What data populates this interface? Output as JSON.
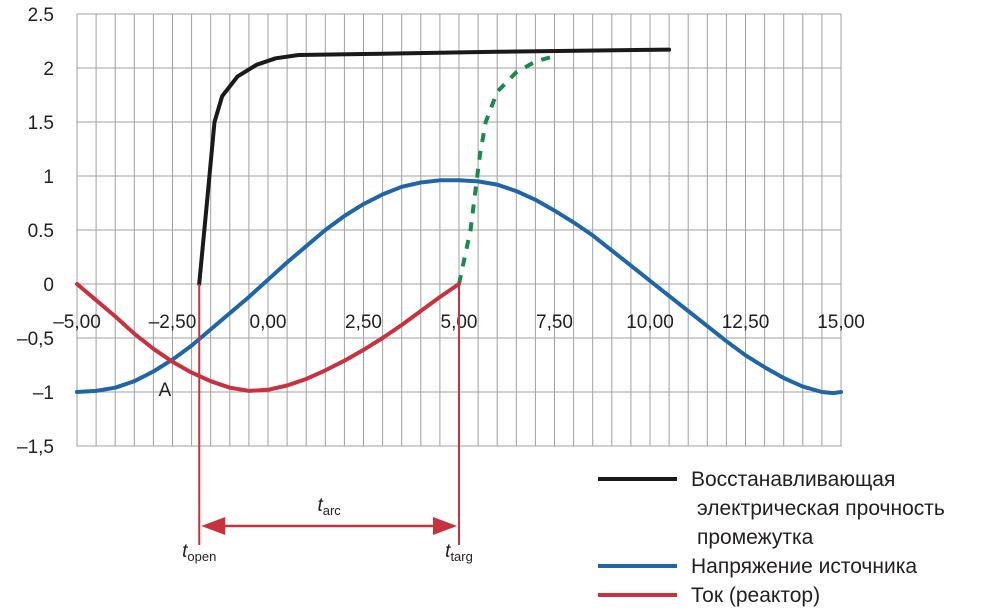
{
  "chart_data": {
    "type": "line",
    "xlim": [
      -5.0,
      15.0
    ],
    "ylim": [
      -1.5,
      2.5
    ],
    "x_grid_step": 0.5,
    "grid": true,
    "x_ticks": [
      {
        "v": -5.0,
        "label": "–5,00"
      },
      {
        "v": -2.5,
        "label": "–2,50"
      },
      {
        "v": 0.0,
        "label": "0,00"
      },
      {
        "v": 2.5,
        "label": "2,50"
      },
      {
        "v": 5.0,
        "label": "5,00"
      },
      {
        "v": 7.5,
        "label": "7,50"
      },
      {
        "v": 10.0,
        "label": "10,00"
      },
      {
        "v": 12.5,
        "label": "12,50"
      },
      {
        "v": 15.0,
        "label": "15,00"
      }
    ],
    "y_ticks": [
      {
        "v": 2.5,
        "label": "2.5"
      },
      {
        "v": 2.0,
        "label": "2"
      },
      {
        "v": 1.5,
        "label": "1.5"
      },
      {
        "v": 1.0,
        "label": "1"
      },
      {
        "v": 0.5,
        "label": "0.5"
      },
      {
        "v": 0.0,
        "label": "0"
      },
      {
        "v": -0.5,
        "label": "–0,5"
      },
      {
        "v": -1.0,
        "label": "–1"
      },
      {
        "v": -1.5,
        "label": "–1,5"
      }
    ],
    "series": [
      {
        "key": "recovery",
        "name": "Восстанавливающая электрическая прочность промежутка",
        "color": "#1a1a1a",
        "dash": false,
        "points": [
          [
            -1.8,
            0.0
          ],
          [
            -1.6,
            0.75
          ],
          [
            -1.4,
            1.5
          ],
          [
            -1.2,
            1.74
          ],
          [
            -0.8,
            1.92
          ],
          [
            -0.3,
            2.03
          ],
          [
            0.2,
            2.09
          ],
          [
            0.8,
            2.12
          ],
          [
            2.5,
            2.13
          ],
          [
            6.0,
            2.15
          ],
          [
            10.5,
            2.17
          ]
        ]
      },
      {
        "key": "recovery_after",
        "name": "",
        "color": "#1a8a4a",
        "dash": true,
        "points": [
          [
            5.0,
            0.0
          ],
          [
            5.3,
            0.5
          ],
          [
            5.55,
            1.2
          ],
          [
            5.7,
            1.5
          ],
          [
            6.0,
            1.78
          ],
          [
            6.5,
            1.96
          ],
          [
            7.0,
            2.06
          ],
          [
            7.6,
            2.12
          ]
        ]
      },
      {
        "key": "source_voltage",
        "name": "Напряжение источника",
        "color": "#1f66a8",
        "dash": false,
        "points": [
          [
            -5.0,
            -1.0
          ],
          [
            -4.5,
            -0.99
          ],
          [
            -4.0,
            -0.96
          ],
          [
            -3.5,
            -0.9
          ],
          [
            -3.0,
            -0.81
          ],
          [
            -2.5,
            -0.7
          ],
          [
            -2.0,
            -0.57
          ],
          [
            -1.5,
            -0.42
          ],
          [
            -1.0,
            -0.27
          ],
          [
            -0.5,
            -0.12
          ],
          [
            0.0,
            0.04
          ],
          [
            0.5,
            0.2
          ],
          [
            1.0,
            0.35
          ],
          [
            1.5,
            0.5
          ],
          [
            2.0,
            0.63
          ],
          [
            2.5,
            0.74
          ],
          [
            3.0,
            0.83
          ],
          [
            3.5,
            0.9
          ],
          [
            4.0,
            0.94
          ],
          [
            4.5,
            0.96
          ],
          [
            5.0,
            0.96
          ],
          [
            5.5,
            0.95
          ],
          [
            6.0,
            0.92
          ],
          [
            6.5,
            0.86
          ],
          [
            7.0,
            0.78
          ],
          [
            7.5,
            0.68
          ],
          [
            8.0,
            0.57
          ],
          [
            8.5,
            0.45
          ],
          [
            9.0,
            0.31
          ],
          [
            9.5,
            0.17
          ],
          [
            10.0,
            0.03
          ],
          [
            10.5,
            -0.11
          ],
          [
            11.0,
            -0.25
          ],
          [
            11.5,
            -0.39
          ],
          [
            12.0,
            -0.53
          ],
          [
            12.5,
            -0.66
          ],
          [
            13.0,
            -0.77
          ],
          [
            13.5,
            -0.87
          ],
          [
            14.0,
            -0.95
          ],
          [
            14.5,
            -1.0
          ],
          [
            14.8,
            -1.01
          ],
          [
            15.0,
            -1.0
          ]
        ]
      },
      {
        "key": "reactor_current",
        "name": "Ток (реактор)",
        "color": "#c8323e",
        "dash": false,
        "points": [
          [
            -5.0,
            0.0
          ],
          [
            -4.5,
            -0.15
          ],
          [
            -4.0,
            -0.3
          ],
          [
            -3.5,
            -0.46
          ],
          [
            -3.0,
            -0.6
          ],
          [
            -2.5,
            -0.72
          ],
          [
            -2.0,
            -0.82
          ],
          [
            -1.5,
            -0.9
          ],
          [
            -1.0,
            -0.96
          ],
          [
            -0.5,
            -0.99
          ],
          [
            0.0,
            -0.98
          ],
          [
            0.5,
            -0.94
          ],
          [
            1.0,
            -0.88
          ],
          [
            1.5,
            -0.8
          ],
          [
            2.0,
            -0.71
          ],
          [
            2.5,
            -0.61
          ],
          [
            3.0,
            -0.5
          ],
          [
            3.5,
            -0.38
          ],
          [
            4.0,
            -0.25
          ],
          [
            4.5,
            -0.12
          ],
          [
            5.0,
            0.0
          ]
        ]
      }
    ],
    "annotations": {
      "point_a": {
        "label": "A",
        "x": -2.7,
        "y": -0.97
      },
      "t_open": {
        "x": -1.8,
        "italic": "t",
        "sub": "open"
      },
      "t_targ": {
        "x": 5.0,
        "italic": "t",
        "sub": "targ"
      },
      "t_arc": {
        "italic": "t",
        "sub": "arc",
        "from": -1.8,
        "to": 5.0
      },
      "color": "#c8323e"
    },
    "legend": {
      "placement": "bottom-right",
      "items": [
        {
          "key": "recovery",
          "lines": [
            "Восстанавливающая",
            "электрическая прочность",
            "промежутка"
          ],
          "color": "#1a1a1a"
        },
        {
          "key": "source_voltage",
          "lines": [
            "Напряжение источника"
          ],
          "color": "#1f66a8"
        },
        {
          "key": "reactor_current",
          "lines": [
            "Ток (реактор)"
          ],
          "color": "#c8323e"
        }
      ]
    }
  }
}
